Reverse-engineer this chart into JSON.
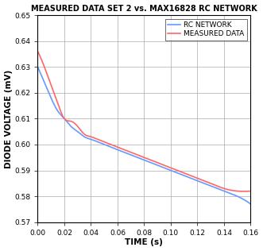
{
  "title": "MEASURED DATA SET 2 vs. MAX16828 RC NETWORK",
  "xlabel": "TIME (s)",
  "ylabel": "DIODE VOLTAGE (mV)",
  "xlim": [
    0,
    0.16
  ],
  "ylim": [
    0.57,
    0.65
  ],
  "xticks": [
    0.0,
    0.02,
    0.04,
    0.06,
    0.08,
    0.1,
    0.12,
    0.14,
    0.16
  ],
  "yticks": [
    0.57,
    0.58,
    0.59,
    0.6,
    0.61,
    0.62,
    0.63,
    0.64,
    0.65
  ],
  "rc_network_color": "#6699FF",
  "measured_data_color": "#FF6666",
  "legend_labels": [
    "RC NETWORK",
    "MEASURED DATA"
  ],
  "background_color": "#FFFFFF",
  "grid_color": "#AAAAAA",
  "rc_x": [
    0.0,
    0.005,
    0.01,
    0.015,
    0.02,
    0.025,
    0.03,
    0.035,
    0.04,
    0.05,
    0.06,
    0.07,
    0.08,
    0.09,
    0.1,
    0.11,
    0.12,
    0.13,
    0.14,
    0.15,
    0.16
  ],
  "rc_y": [
    0.63,
    0.624,
    0.618,
    0.613,
    0.61,
    0.607,
    0.605,
    0.603,
    0.602,
    0.6,
    0.598,
    0.596,
    0.594,
    0.592,
    0.59,
    0.588,
    0.586,
    0.584,
    0.582,
    0.58,
    0.577
  ],
  "meas_x": [
    0.0,
    0.005,
    0.01,
    0.015,
    0.02,
    0.025,
    0.03,
    0.035,
    0.04,
    0.045,
    0.05,
    0.06,
    0.07,
    0.08,
    0.09,
    0.1,
    0.11,
    0.12,
    0.13,
    0.14,
    0.15,
    0.16
  ],
  "meas_y": [
    0.636,
    0.63,
    0.623,
    0.616,
    0.61,
    0.609,
    0.607,
    0.604,
    0.603,
    0.602,
    0.601,
    0.599,
    0.597,
    0.595,
    0.593,
    0.591,
    0.589,
    0.587,
    0.585,
    0.583,
    0.582,
    0.582
  ],
  "figsize": [
    3.31,
    3.16
  ],
  "dpi": 100,
  "title_fontsize": 7.0,
  "label_fontsize": 7.5,
  "tick_fontsize": 6.5,
  "legend_fontsize": 6.5,
  "linewidth": 1.2
}
